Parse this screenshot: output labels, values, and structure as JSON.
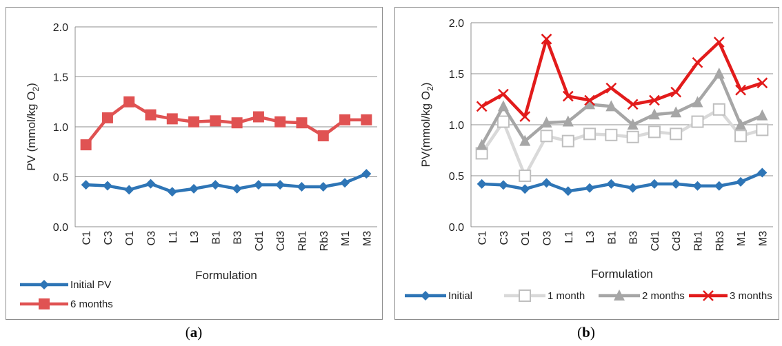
{
  "chart_data": [
    {
      "type": "line",
      "panel_label": "a",
      "xlabel": "Formulation",
      "ylabel": "PV (mmol/kg O",
      "ylabel_sub": "2",
      "ylabel_close": ")",
      "ylim": [
        0.0,
        2.0
      ],
      "yticks": [
        "0.0",
        "0.5",
        "1.0",
        "1.5",
        "2.0"
      ],
      "grid": true,
      "legend_position": "bottom-left",
      "categories": [
        "C1",
        "C3",
        "O1",
        "O3",
        "L1",
        "L3",
        "B1",
        "B3",
        "Cd1",
        "Cd3",
        "Rb1",
        "Rb3",
        "M1",
        "M3"
      ],
      "series": [
        {
          "name": "Initial PV",
          "color": "#2e75b6",
          "marker": "diamond",
          "values": [
            0.42,
            0.41,
            0.37,
            0.43,
            0.35,
            0.38,
            0.42,
            0.38,
            0.42,
            0.42,
            0.4,
            0.4,
            0.44,
            0.53
          ]
        },
        {
          "name": "6 months",
          "color": "#e05252",
          "marker": "square",
          "values": [
            0.82,
            1.09,
            1.25,
            1.12,
            1.08,
            1.05,
            1.06,
            1.04,
            1.1,
            1.05,
            1.04,
            0.91,
            1.07,
            1.07
          ]
        }
      ]
    },
    {
      "type": "line",
      "panel_label": "b",
      "xlabel": "Formulation",
      "ylabel": "PV(mmol/kg O",
      "ylabel_sub": "2",
      "ylabel_close": ")",
      "ylim": [
        0.0,
        2.0
      ],
      "yticks": [
        "0.0",
        "0.5",
        "1.0",
        "1.5",
        "2.0"
      ],
      "grid": true,
      "legend_position": "bottom",
      "categories": [
        "C1",
        "C3",
        "O1",
        "O3",
        "L1",
        "L3",
        "B1",
        "B3",
        "Cd1",
        "Cd3",
        "Rb1",
        "Rb3",
        "M1",
        "M3"
      ],
      "series": [
        {
          "name": "Initial",
          "color": "#2e75b6",
          "marker": "diamond",
          "values": [
            0.42,
            0.41,
            0.37,
            0.43,
            0.35,
            0.38,
            0.42,
            0.38,
            0.42,
            0.42,
            0.4,
            0.4,
            0.44,
            0.53
          ]
        },
        {
          "name": "1 month",
          "color": "#d9d9d9",
          "marker": "square-open",
          "values": [
            0.72,
            1.03,
            0.5,
            0.89,
            0.84,
            0.91,
            0.9,
            0.88,
            0.93,
            0.91,
            1.03,
            1.15,
            0.89,
            0.95
          ]
        },
        {
          "name": "2 months",
          "color": "#a6a6a6",
          "marker": "triangle",
          "values": [
            0.8,
            1.18,
            0.84,
            1.02,
            1.03,
            1.2,
            1.18,
            1.0,
            1.1,
            1.12,
            1.22,
            1.5,
            1.0,
            1.09
          ]
        },
        {
          "name": "3 months",
          "color": "#e21b1b",
          "marker": "x",
          "values": [
            1.18,
            1.3,
            1.08,
            1.84,
            1.28,
            1.24,
            1.36,
            1.2,
            1.24,
            1.32,
            1.61,
            1.81,
            1.34,
            1.41
          ]
        }
      ]
    }
  ],
  "captions": [
    {
      "open": "(",
      "label": "a",
      "close": ")"
    },
    {
      "open": "(",
      "label": "b",
      "close": ")"
    }
  ]
}
